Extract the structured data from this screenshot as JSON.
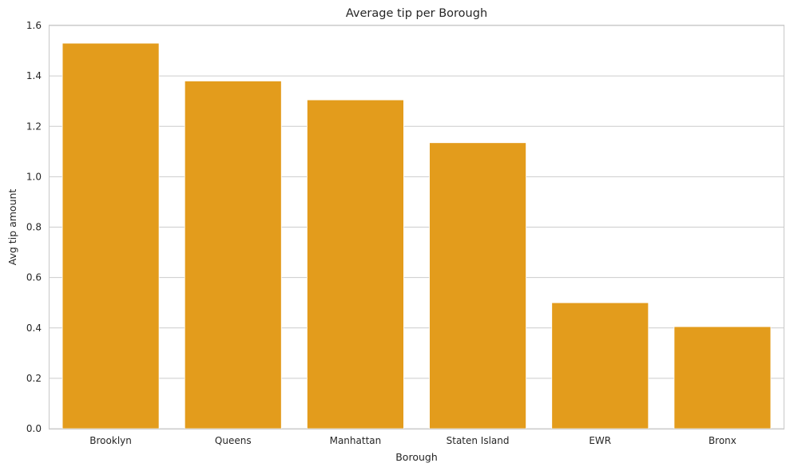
{
  "chart_data": {
    "type": "bar",
    "title": "Average tip per Borough",
    "xlabel": "Borough",
    "ylabel": "Avg tip amount",
    "categories": [
      "Brooklyn",
      "Queens",
      "Manhattan",
      "Staten Island",
      "EWR",
      "Bronx"
    ],
    "values": [
      1.53,
      1.38,
      1.305,
      1.135,
      0.5,
      0.405
    ],
    "ylim": [
      0,
      1.6
    ],
    "yticks": [
      0.0,
      0.2,
      0.4,
      0.6,
      0.8,
      1.0,
      1.2,
      1.4,
      1.6
    ],
    "bar_color": "#e39c1c",
    "grid": "y",
    "legend": "none"
  }
}
